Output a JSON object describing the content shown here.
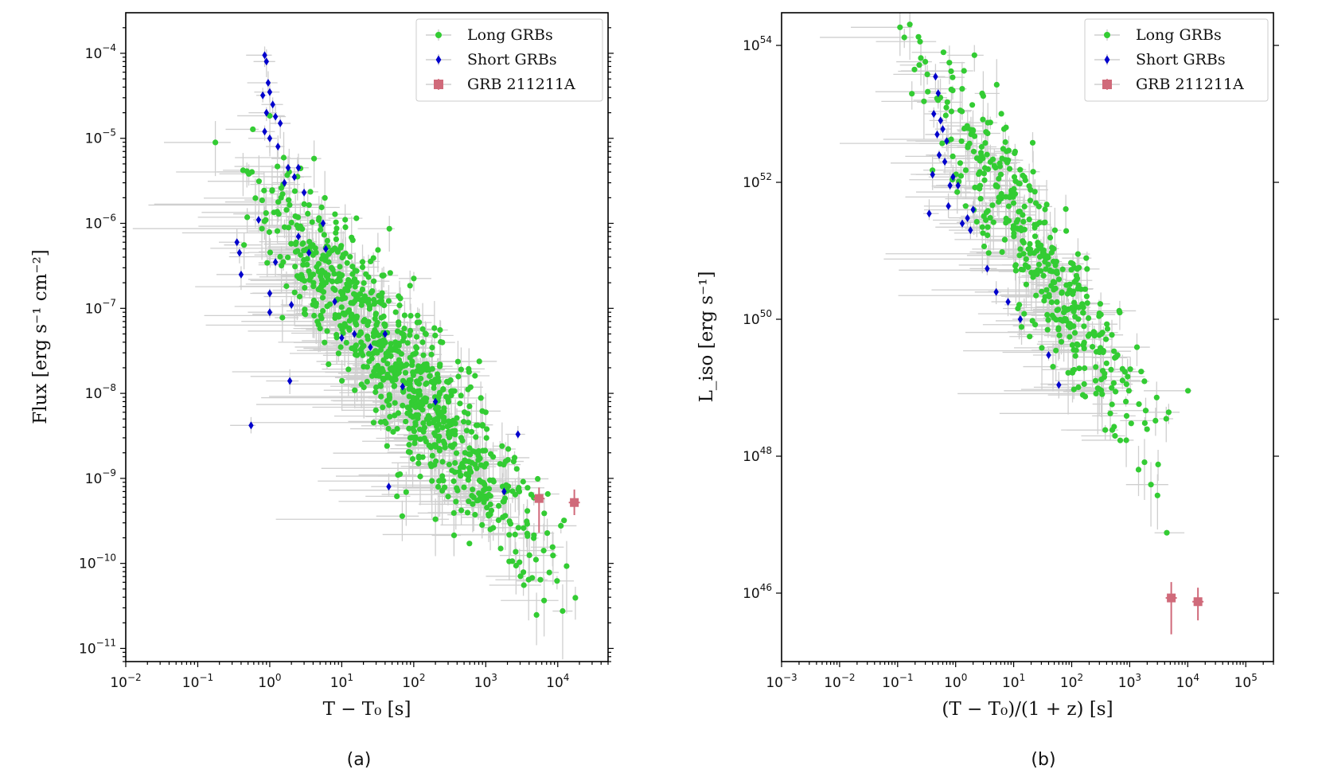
{
  "chart_data": [
    {
      "type": "scatter",
      "panel_caption": "(a)",
      "xlabel": "T − T₀ [s]",
      "ylabel": "Flux [erg s⁻¹ cm⁻²]",
      "xscale": "log",
      "yscale": "log",
      "xlim": [
        0.01,
        50000
      ],
      "ylim": [
        7e-12,
        0.0003
      ],
      "xticks": [
        {
          "base": "10",
          "exp": "−2"
        },
        {
          "base": "10",
          "exp": "−1"
        },
        {
          "base": "10",
          "exp": "0"
        },
        {
          "base": "10",
          "exp": "1"
        },
        {
          "base": "10",
          "exp": "2"
        },
        {
          "base": "10",
          "exp": "3"
        },
        {
          "base": "10",
          "exp": "4"
        }
      ],
      "yticks": [
        {
          "base": "10",
          "exp": "−11"
        },
        {
          "base": "10",
          "exp": "−10"
        },
        {
          "base": "10",
          "exp": "−9"
        },
        {
          "base": "10",
          "exp": "−8"
        },
        {
          "base": "10",
          "exp": "−7"
        },
        {
          "base": "10",
          "exp": "−6"
        },
        {
          "base": "10",
          "exp": "−5"
        },
        {
          "base": "10",
          "exp": "−4"
        }
      ],
      "legend_position": "top-right",
      "grid": false,
      "series": [
        {
          "name": "Long GRBs",
          "color": "#33cc33",
          "marker": "circle",
          "trend": {
            "x_from": 0.1,
            "x_to": 40000,
            "log_y_at_x1": -5.8,
            "slope": -1.05,
            "scatter_dex": 0.45
          },
          "x_range": [
            0.1,
            40000
          ],
          "approx_count": 900
        },
        {
          "name": "Short GRBs",
          "color": "#0000cc",
          "marker": "diamond",
          "points": [
            [
              0.85,
              9.5e-05
            ],
            [
              0.9,
              8e-05
            ],
            [
              0.8,
              3.2e-05
            ],
            [
              0.95,
              4.5e-05
            ],
            [
              1.0,
              3.5e-05
            ],
            [
              1.1,
              2.5e-05
            ],
            [
              0.9,
              2e-05
            ],
            [
              1.2,
              1.8e-05
            ],
            [
              1.4,
              1.5e-05
            ],
            [
              0.85,
              1.2e-05
            ],
            [
              1.0,
              1e-05
            ],
            [
              1.3,
              8e-06
            ],
            [
              1.8,
              4.5e-06
            ],
            [
              2.2,
              3.5e-06
            ],
            [
              2.5,
              4.5e-06
            ],
            [
              1.6,
              3e-06
            ],
            [
              3.0,
              2.3e-06
            ],
            [
              0.35,
              6e-07
            ],
            [
              0.38,
              4.5e-07
            ],
            [
              0.4,
              2.5e-07
            ],
            [
              0.7,
              1.1e-06
            ],
            [
              1.0,
              9e-08
            ],
            [
              1.2,
              3.5e-07
            ],
            [
              2.5,
              7e-07
            ],
            [
              3.5,
              4.5e-07
            ],
            [
              5.5,
              1e-06
            ],
            [
              6.0,
              5e-07
            ],
            [
              1.0,
              1.5e-07
            ],
            [
              2.0,
              1.1e-07
            ],
            [
              1.9,
              1.4e-08
            ],
            [
              0.55,
              4.2e-09
            ],
            [
              8.0,
              1.2e-07
            ],
            [
              15.0,
              5e-08
            ],
            [
              25.0,
              3.5e-08
            ],
            [
              40.0,
              5e-08
            ],
            [
              70.0,
              1.2e-08
            ],
            [
              200.0,
              8e-09
            ],
            [
              1800.0,
              7e-10
            ],
            [
              2800.0,
              3.3e-09
            ],
            [
              45.0,
              8e-10
            ],
            [
              10.0,
              4.5e-08
            ]
          ]
        },
        {
          "name": "GRB 211211A",
          "color": "#d06a7a",
          "marker": "square",
          "points": [
            [
              5500,
              5.8e-10
            ],
            [
              17000,
              5.2e-10
            ]
          ],
          "yerr": [
            [
              3.5e-10,
              2e-10
            ],
            [
              1.5e-10,
              2.2e-10
            ]
          ]
        }
      ]
    },
    {
      "type": "scatter",
      "panel_caption": "(b)",
      "xlabel": "(T − T₀)/(1 + z) [s]",
      "ylabel": "L_iso [erg s⁻¹]",
      "xscale": "log",
      "yscale": "log",
      "xlim": [
        0.001,
        300000
      ],
      "ylim": [
        1e+45,
        3e+54
      ],
      "xticks": [
        {
          "base": "10",
          "exp": "−3"
        },
        {
          "base": "10",
          "exp": "−2"
        },
        {
          "base": "10",
          "exp": "−1"
        },
        {
          "base": "10",
          "exp": "0"
        },
        {
          "base": "10",
          "exp": "1"
        },
        {
          "base": "10",
          "exp": "2"
        },
        {
          "base": "10",
          "exp": "3"
        },
        {
          "base": "10",
          "exp": "4"
        },
        {
          "base": "10",
          "exp": "5"
        }
      ],
      "yticks": [
        {
          "base": "10",
          "exp": "46"
        },
        {
          "base": "10",
          "exp": "48"
        },
        {
          "base": "10",
          "exp": "50"
        },
        {
          "base": "10",
          "exp": "52"
        },
        {
          "base": "10",
          "exp": "54"
        }
      ],
      "legend_position": "top-right",
      "grid": false,
      "series": [
        {
          "name": "Long GRBs",
          "color": "#33cc33",
          "marker": "circle",
          "trend": {
            "x_from": 0.03,
            "x_to": 25000,
            "log_y_at_x1": 53.0,
            "slope": -1.45,
            "scatter_dex": 0.55
          },
          "x_range": [
            0.03,
            25000
          ],
          "approx_count": 450
        },
        {
          "name": "Short GRBs",
          "color": "#0000cc",
          "marker": "diamond",
          "points": [
            [
              0.45,
              3.5e+53
            ],
            [
              0.5,
              2e+53
            ],
            [
              0.42,
              1e+53
            ],
            [
              0.55,
              8e+52
            ],
            [
              0.6,
              6e+52
            ],
            [
              0.48,
              5e+52
            ],
            [
              0.7,
              4e+52
            ],
            [
              0.52,
              2.5e+52
            ],
            [
              0.65,
              2e+52
            ],
            [
              0.9,
              1.2e+52
            ],
            [
              1.1,
              9e+51
            ],
            [
              0.4,
              1.3e+52
            ],
            [
              0.35,
              3.5e+51
            ],
            [
              0.75,
              4.5e+51
            ],
            [
              1.3,
              2.5e+51
            ],
            [
              1.6,
              3e+51
            ],
            [
              2.0,
              4e+51
            ],
            [
              3.5,
              5.5e+50
            ],
            [
              5.0,
              2.5e+50
            ],
            [
              8.0,
              1.8e+50
            ],
            [
              13.0,
              1e+50
            ],
            [
              60.0,
              1.1e+49
            ],
            [
              40.0,
              3e+49
            ],
            [
              0.8,
              9e+51
            ],
            [
              1.8,
              2e+51
            ]
          ]
        },
        {
          "name": "GRB 211211A",
          "color": "#d06a7a",
          "marker": "square",
          "points": [
            [
              5200,
              8.5e+45
            ],
            [
              15000,
              7.5e+45
            ]
          ],
          "yerr": [
            [
              6e+45,
              6e+45
            ],
            [
              3.5e+45,
              4.5e+45
            ]
          ]
        }
      ]
    }
  ]
}
